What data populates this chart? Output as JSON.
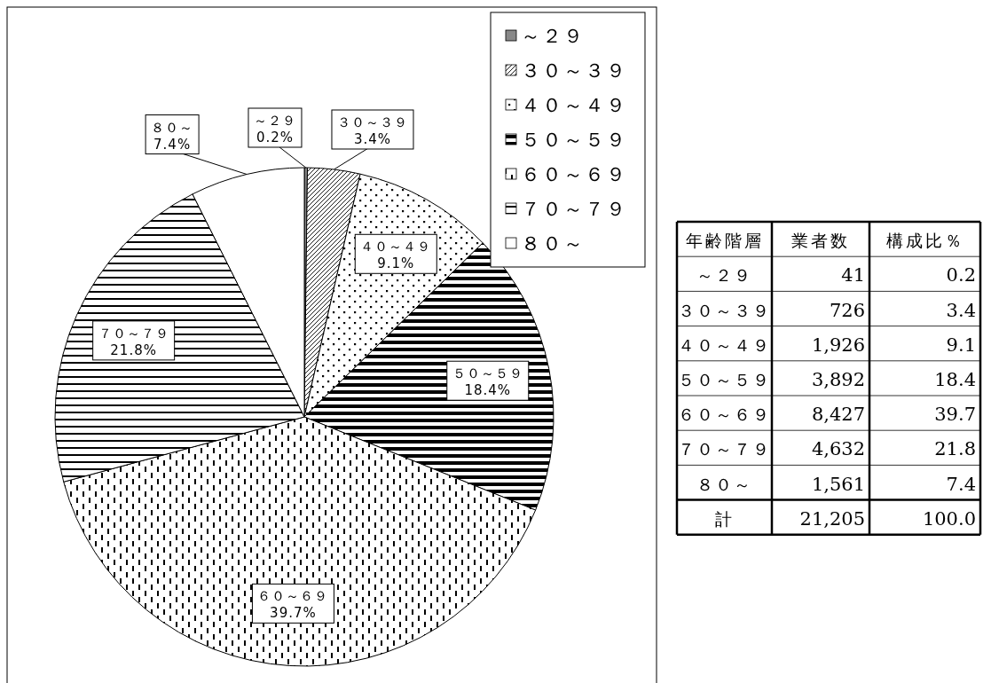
{
  "chart_data": [
    {
      "type": "pie",
      "categories": [
        "～２９",
        "３０～３９",
        "４０～４９",
        "５０～５９",
        "６０～６９",
        "７０～７９",
        "８０～"
      ],
      "values": [
        0.2,
        3.4,
        9.1,
        18.4,
        39.7,
        21.8,
        7.4
      ],
      "value_labels": [
        "0.2%",
        "3.4%",
        "9.1%",
        "18.4%",
        "39.7%",
        "21.8%",
        "7.4%"
      ],
      "legend": "top right"
    },
    {
      "type": "other",
      "xlabel": "年齢階層",
      "categories": [
        "～２９",
        "３０～３９",
        "４０～４９",
        "５０～５９",
        "６０～６９",
        "７０～７９",
        "８０～",
        "計"
      ],
      "data_labels": true,
      "series": [
        {
          "name": "業者数",
          "values": [
            41,
            726,
            1926,
            3892,
            8427,
            4632,
            1561,
            21205
          ],
          "value_labels": [
            "41",
            "726",
            "1,926",
            "3,892",
            "8,427",
            "4,632",
            "1,561",
            "21,205"
          ]
        },
        {
          "name": "構成比％",
          "values": [
            0.2,
            3.4,
            9.1,
            18.4,
            39.7,
            21.8,
            7.4,
            100.0
          ],
          "value_labels": [
            "0.2",
            "3.4",
            "9.1",
            "18.4",
            "39.7",
            "21.8",
            "7.4",
            "100.0"
          ]
        }
      ]
    }
  ]
}
